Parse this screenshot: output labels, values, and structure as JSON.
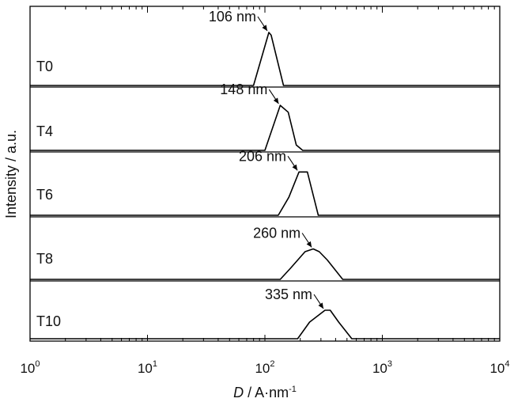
{
  "chart_data": {
    "type": "line",
    "x_scale": "log",
    "xlim": [
      1,
      10000
    ],
    "xlabel_italic": "D",
    "xlabel_rest": " / A·nm",
    "xlabel_sup": "-1",
    "ylabel": "Intensity / a.u.",
    "x_ticks": [
      {
        "base": "10",
        "exp": "0"
      },
      {
        "base": "10",
        "exp": "1"
      },
      {
        "base": "10",
        "exp": "2"
      },
      {
        "base": "10",
        "exp": "3"
      },
      {
        "base": "10",
        "exp": "4"
      }
    ],
    "series": [
      {
        "name": "T0",
        "peak_label": "106 nm",
        "peak_x": 106,
        "x": [
          1,
          80,
          108,
          113,
          144,
          10000
        ],
        "y": [
          0,
          0,
          1,
          0.95,
          0,
          0
        ]
      },
      {
        "name": "T4",
        "peak_label": "148 nm",
        "peak_x": 148,
        "x": [
          1,
          100,
          135,
          158,
          185,
          210,
          10000
        ],
        "y": [
          0,
          0,
          0.85,
          0.72,
          0.1,
          0,
          0
        ]
      },
      {
        "name": "T6",
        "peak_label": "206 nm",
        "peak_x": 206,
        "x": [
          1,
          130,
          160,
          195,
          230,
          285,
          10000
        ],
        "y": [
          0,
          0,
          0.3,
          0.72,
          0.72,
          0,
          0
        ]
      },
      {
        "name": "T8",
        "peak_label": "260 nm",
        "peak_x": 260,
        "x": [
          1,
          135,
          165,
          220,
          258,
          290,
          340,
          460,
          10000
        ],
        "y": [
          0,
          0,
          0.2,
          0.5,
          0.55,
          0.5,
          0.35,
          0,
          0
        ]
      },
      {
        "name": "T10",
        "peak_label": "335 nm",
        "peak_x": 335,
        "x": [
          1,
          190,
          240,
          325,
          360,
          425,
          550,
          10000
        ],
        "y": [
          0,
          0,
          0.35,
          0.6,
          0.6,
          0.35,
          0,
          0
        ]
      }
    ]
  }
}
